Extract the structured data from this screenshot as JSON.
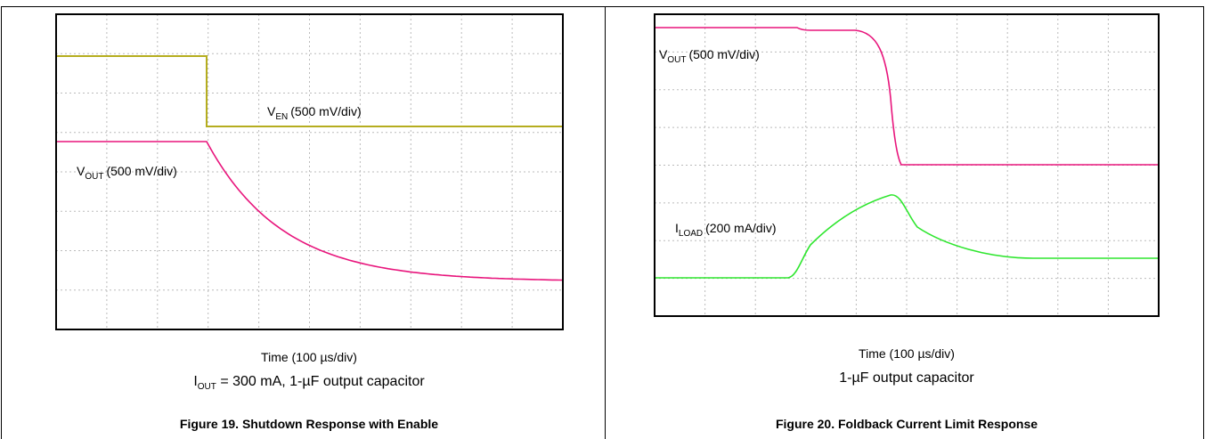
{
  "figures": [
    {
      "trace_labels": [
        {
          "main": "V",
          "sub": "EN",
          "rest": "(500 mV/div)"
        },
        {
          "main": "V",
          "sub": "OUT",
          "rest": "(500 mV/div)"
        }
      ],
      "time_label": "Time (100 µs/div)",
      "condition": {
        "main": "I",
        "sub": "OUT",
        "rest": " = 300 mA, 1-µF output capacitor"
      },
      "caption": "Figure 19. Shutdown Response with Enable"
    },
    {
      "trace_labels": [
        {
          "main": "V",
          "sub": "OUT",
          "rest": "(500 mV/div)"
        },
        {
          "main": "I",
          "sub": "LOAD",
          "rest": "(200 mA/div)"
        }
      ],
      "time_label": "Time (100 µs/div)",
      "condition": "1-µF output capacitor",
      "caption": "Figure 20. Foldback Current Limit Response"
    }
  ]
}
